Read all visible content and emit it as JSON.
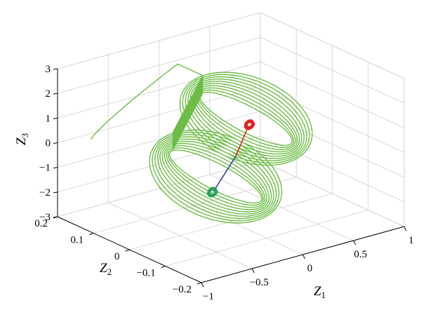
{
  "chart_data": {
    "type": "line3d",
    "title": "",
    "axes": {
      "x": {
        "label": "Z",
        "sub": "1",
        "range": [
          -1,
          1
        ],
        "ticks": [
          -1,
          -0.5,
          0,
          0.5,
          1
        ],
        "tick_labels": [
          "−1",
          "−0.5",
          "0",
          "0.5",
          "1"
        ]
      },
      "y": {
        "label": "Z",
        "sub": "2",
        "range": [
          -0.2,
          0.2
        ],
        "ticks": [
          -0.2,
          -0.1,
          0,
          0.1,
          0.2
        ],
        "tick_labels": [
          "−0.2",
          "−0.1",
          "0",
          "0.1",
          "0.2"
        ]
      },
      "z": {
        "label": "Z",
        "sub": "3",
        "range": [
          -3,
          3
        ],
        "ticks": [
          -3,
          -2,
          -1,
          0,
          1,
          2,
          3
        ],
        "tick_labels": [
          "−3",
          "−2",
          "−1",
          "0",
          "1",
          "2",
          "3"
        ]
      }
    },
    "grid": true,
    "series": [
      {
        "color": "#6cbd45",
        "kind": "spiral",
        "start": [
          -0.85,
          0.15,
          0.3
        ],
        "entry": [
          -0.1,
          0.12,
          2.7
        ],
        "lobes": [
          {
            "center": [
              0.15,
              0.0,
              1.0
            ],
            "a_outer": 0.55,
            "a_inner": 0.18,
            "h_outer": 1.9,
            "h_inner": 0.5
          },
          {
            "center": [
              -0.15,
              0.0,
              -1.0
            ],
            "a_outer": 0.55,
            "a_inner": 0.18,
            "h_outer": 1.9,
            "h_inner": 0.5
          }
        ],
        "turns": 10
      },
      {
        "color": "#3c3ca8",
        "kind": "line",
        "points": [
          [
            -0.35,
            -0.05,
            -1.05
          ],
          [
            0.05,
            0.0,
            -0.4
          ]
        ]
      },
      {
        "color": "#e02020",
        "kind": "line",
        "points": [
          [
            0.05,
            0.0,
            -0.4
          ],
          [
            0.35,
            0.05,
            0.15
          ]
        ]
      },
      {
        "color": "#e02020",
        "kind": "cluster",
        "center": [
          0.36,
          0.05,
          0.2
        ],
        "size": 0.05
      },
      {
        "color": "#2aa05a",
        "kind": "cluster",
        "center": [
          -0.36,
          -0.05,
          -1.05
        ],
        "size": 0.05
      }
    ]
  }
}
